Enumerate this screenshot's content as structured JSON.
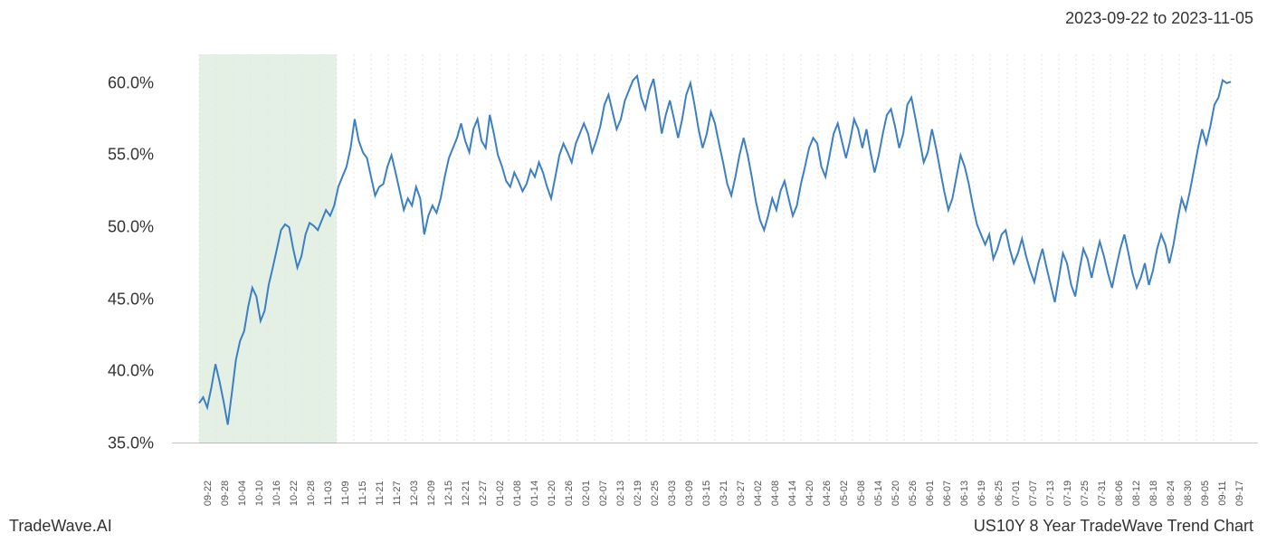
{
  "header": {
    "date_range": "2023-09-22 to 2023-11-05"
  },
  "footer": {
    "left": "TradeWave.AI",
    "right": "US10Y 8 Year TradeWave Trend Chart"
  },
  "chart": {
    "type": "line",
    "line_color": "#3b7fc4",
    "line_width": 2,
    "background_color": "#ffffff",
    "grid_color": "#e5e5e5",
    "highlight_fill": "#d8ead8",
    "highlight_start_index": 0,
    "highlight_end_index": 8,
    "ylim": [
      35,
      62
    ],
    "yticks": [
      35.0,
      40.0,
      45.0,
      50.0,
      55.0,
      60.0
    ],
    "ytick_labels": [
      "35.0%",
      "40.0%",
      "45.0%",
      "50.0%",
      "55.0%",
      "60.0%"
    ],
    "ytick_fontsize": 18,
    "xtick_labels": [
      "09-22",
      "09-28",
      "10-04",
      "10-10",
      "10-16",
      "10-22",
      "10-28",
      "11-03",
      "11-09",
      "11-15",
      "11-21",
      "11-27",
      "12-03",
      "12-09",
      "12-15",
      "12-21",
      "12-27",
      "01-02",
      "01-08",
      "01-14",
      "01-20",
      "01-26",
      "02-01",
      "02-07",
      "02-13",
      "02-19",
      "02-25",
      "03-03",
      "03-09",
      "03-15",
      "03-21",
      "03-27",
      "04-02",
      "04-08",
      "04-14",
      "04-20",
      "04-26",
      "05-02",
      "05-08",
      "05-14",
      "05-20",
      "05-26",
      "06-01",
      "06-07",
      "06-13",
      "06-19",
      "06-25",
      "07-01",
      "07-07",
      "07-13",
      "07-19",
      "07-25",
      "07-31",
      "08-06",
      "08-12",
      "08-18",
      "08-24",
      "08-30",
      "09-05",
      "09-11",
      "09-17"
    ],
    "xtick_fontsize": 11,
    "series": [
      37.8,
      38.2,
      37.5,
      38.9,
      40.5,
      39.3,
      37.9,
      36.3,
      38.5,
      40.8,
      42.1,
      42.8,
      44.5,
      45.8,
      45.2,
      43.5,
      44.2,
      46.0,
      47.2,
      48.5,
      49.8,
      50.2,
      50.0,
      48.5,
      47.2,
      48.0,
      49.5,
      50.3,
      50.1,
      49.8,
      50.5,
      51.2,
      50.8,
      51.5,
      52.8,
      53.5,
      54.2,
      55.5,
      57.5,
      56.0,
      55.2,
      54.8,
      53.5,
      52.2,
      52.8,
      53.0,
      54.2,
      55.0,
      53.8,
      52.5,
      51.2,
      52.0,
      51.5,
      52.8,
      52.0,
      49.5,
      50.8,
      51.5,
      51.0,
      52.0,
      53.5,
      54.8,
      55.5,
      56.2,
      57.2,
      56.0,
      55.2,
      56.8,
      57.5,
      56.0,
      55.5,
      57.8,
      56.5,
      55.0,
      54.2,
      53.2,
      52.8,
      53.8,
      53.2,
      52.5,
      53.0,
      54.0,
      53.5,
      54.5,
      53.8,
      52.8,
      52.0,
      53.5,
      55.0,
      55.8,
      55.2,
      54.5,
      55.8,
      56.5,
      57.2,
      56.5,
      55.2,
      56.0,
      57.0,
      58.5,
      59.2,
      58.0,
      56.8,
      57.5,
      58.8,
      59.5,
      60.2,
      60.5,
      59.0,
      58.2,
      59.5,
      60.3,
      58.5,
      56.5,
      57.8,
      58.8,
      57.5,
      56.2,
      57.5,
      59.2,
      60.0,
      58.5,
      56.8,
      55.5,
      56.5,
      58.0,
      57.2,
      55.8,
      54.5,
      53.0,
      52.2,
      53.5,
      55.0,
      56.2,
      55.0,
      53.5,
      51.8,
      50.5,
      49.8,
      50.8,
      52.0,
      51.2,
      52.5,
      53.2,
      52.0,
      50.8,
      51.5,
      53.0,
      54.2,
      55.5,
      56.2,
      55.8,
      54.2,
      53.5,
      55.0,
      56.5,
      57.2,
      56.0,
      54.8,
      56.0,
      57.5,
      56.8,
      55.5,
      56.8,
      55.2,
      53.8,
      55.0,
      56.5,
      57.8,
      58.2,
      57.0,
      55.5,
      56.5,
      58.5,
      59.0,
      57.5,
      56.0,
      54.5,
      55.2,
      56.8,
      55.5,
      54.0,
      52.5,
      51.2,
      52.0,
      53.5,
      55.0,
      54.2,
      53.0,
      51.5,
      50.2,
      49.5,
      48.8,
      49.5,
      47.8,
      48.5,
      49.5,
      49.8,
      48.5,
      47.5,
      48.2,
      49.2,
      48.0,
      47.0,
      46.2,
      47.5,
      48.5,
      47.2,
      46.0,
      44.8,
      46.5,
      48.2,
      47.5,
      46.0,
      45.2,
      47.0,
      48.5,
      47.8,
      46.5,
      47.8,
      49.0,
      48.0,
      46.8,
      45.8,
      47.2,
      48.5,
      49.5,
      48.2,
      46.8,
      45.8,
      46.5,
      47.5,
      46.0,
      47.0,
      48.5,
      49.5,
      48.8,
      47.5,
      48.8,
      50.5,
      52.0,
      51.2,
      52.5,
      54.0,
      55.5,
      56.8,
      55.8,
      57.0,
      58.5,
      59.0,
      60.2,
      60.0,
      60.1
    ]
  }
}
